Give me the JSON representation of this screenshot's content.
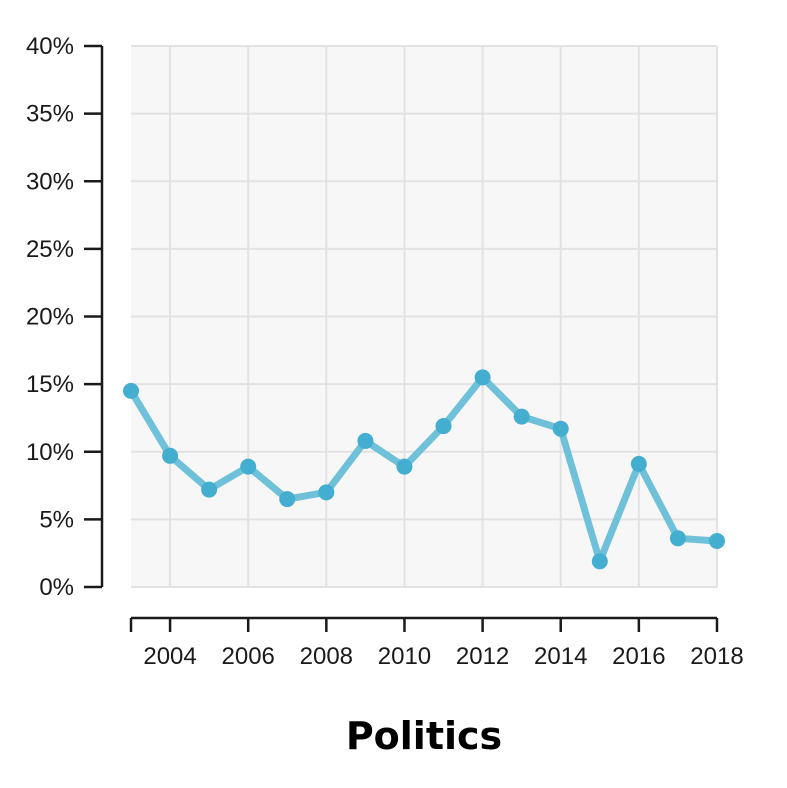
{
  "chart_data": {
    "type": "line",
    "title": "Politics",
    "xlabel": "",
    "ylabel": "",
    "x": [
      2003,
      2004,
      2005,
      2006,
      2007,
      2008,
      2009,
      2010,
      2011,
      2012,
      2013,
      2014,
      2015,
      2016,
      2017,
      2018
    ],
    "series": [
      {
        "values": [
          14.5,
          9.7,
          7.2,
          8.9,
          6.5,
          7.0,
          10.8,
          8.9,
          11.9,
          15.5,
          12.6,
          11.7,
          1.9,
          9.1,
          3.6,
          3.4
        ]
      }
    ],
    "xlim": [
      2003,
      2018
    ],
    "ylim": [
      0,
      40
    ],
    "xticks": [
      "2004",
      "2006",
      "2008",
      "2010",
      "2012",
      "2014",
      "2016",
      "2018"
    ],
    "yticks": [
      "0%",
      "5%",
      "10%",
      "15%",
      "20%",
      "25%",
      "30%",
      "35%",
      "40%"
    ],
    "grid": true,
    "colors": {
      "line": "#6fc1da",
      "marker": "#44aed0",
      "panel": "#f7f7f7",
      "grid": "#e2e2e2",
      "axis": "#1a1a1a"
    }
  }
}
